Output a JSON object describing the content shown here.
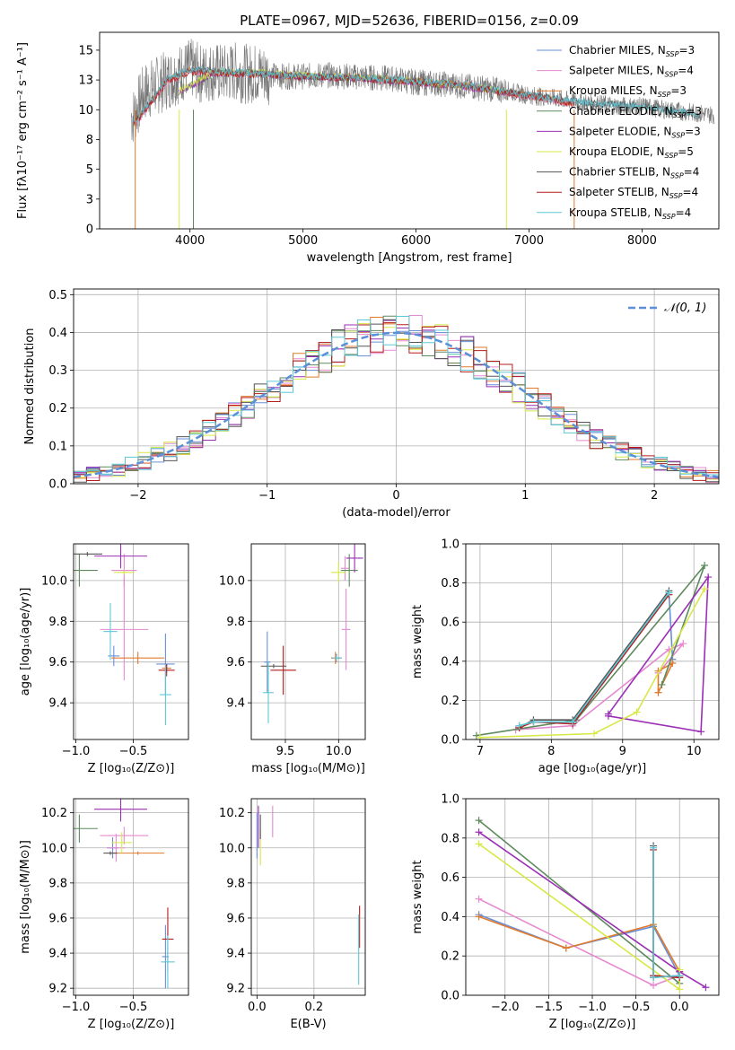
{
  "figure": {
    "title": "PLATE=0967, MJD=52636, FIBERID=0156, z=0.09"
  },
  "colors": [
    "#6a8fd8",
    "#e58ad0",
    "#e07b2e",
    "#5e8a5e",
    "#9b2fb5",
    "#d7e847",
    "#555555",
    "#b51c1c",
    "#5cc8d6"
  ],
  "chart_data": [
    {
      "id": "spectrum",
      "type": "line",
      "title": "PLATE=0967, MJD=52636, FIBERID=0156, z=0.09",
      "xlabel": "wavelength [Angstrom, rest frame]",
      "ylabel": "Flux [fλ10⁻¹⁷ erg cm⁻² s⁻¹ A⁻¹]",
      "xlim": [
        3200,
        8680
      ],
      "ylim": [
        0,
        16.5
      ],
      "xticks": [
        4000,
        5000,
        6000,
        7000,
        8000
      ],
      "yticks": [
        0.0,
        2.5,
        5.0,
        7.5,
        10.0,
        12.5,
        15.0
      ],
      "grid": false,
      "legend": "top-right",
      "series": [
        {
          "name": "Chabrier MILES, N_SSP=3",
          "x": [
            3500,
            3800,
            4000,
            4500,
            5000,
            5500,
            6000,
            6500,
            7000,
            7400
          ],
          "y": [
            8.8,
            12.5,
            13.3,
            13.0,
            12.8,
            12.7,
            12.4,
            12.0,
            11.2,
            10.6
          ]
        },
        {
          "name": "Salpeter MILES, N_SSP=4",
          "x": [
            3500,
            3800,
            4000,
            4500,
            5000,
            5500,
            6000,
            6500,
            7000,
            7400
          ],
          "y": [
            8.6,
            12.4,
            13.2,
            13.0,
            12.8,
            12.6,
            12.3,
            11.9,
            11.1,
            10.5
          ]
        },
        {
          "name": "Kroupa MILES, N_SSP=3",
          "x": [
            3500,
            3800,
            4000,
            4500,
            5000,
            5500,
            6000,
            6500,
            7000,
            7400
          ],
          "y": [
            8.8,
            12.5,
            13.3,
            13.0,
            12.8,
            12.7,
            12.4,
            12.0,
            11.2,
            10.6
          ]
        },
        {
          "name": "Chabrier ELODIE, N_SSP=3",
          "x": [
            3900,
            4200,
            4500,
            5000,
            5500,
            6000,
            6500,
            6800
          ],
          "y": [
            11.5,
            13.0,
            13.1,
            12.8,
            12.7,
            12.3,
            11.9,
            11.5
          ]
        },
        {
          "name": "Salpeter ELODIE, N_SSP=3",
          "x": [
            3900,
            4200,
            4500,
            5000,
            5500,
            6000,
            6500,
            6800
          ],
          "y": [
            11.4,
            13.0,
            13.1,
            12.8,
            12.6,
            12.3,
            11.8,
            11.5
          ]
        },
        {
          "name": "Kroupa ELODIE, N_SSP=5",
          "x": [
            3900,
            4200,
            4500,
            5000,
            5500,
            6000,
            6500,
            6800
          ],
          "y": [
            11.6,
            13.1,
            13.2,
            12.9,
            12.7,
            12.4,
            11.9,
            11.5
          ]
        },
        {
          "name": "Chabrier STELIB, N_SSP=4",
          "x": [
            3500,
            3800,
            4000,
            4500,
            5000,
            5500,
            6000,
            6500,
            7000,
            7500,
            8000,
            8500
          ],
          "y": [
            8.8,
            12.6,
            13.4,
            13.1,
            12.8,
            12.7,
            12.4,
            12.0,
            11.2,
            10.6,
            10.3,
            9.6
          ]
        },
        {
          "name": "Salpeter STELIB, N_SSP=4",
          "x": [
            3500,
            3800,
            4000,
            4500,
            5000,
            5500,
            6000,
            6500,
            7000,
            7400
          ],
          "y": [
            8.7,
            12.4,
            13.2,
            13.0,
            12.8,
            12.6,
            12.3,
            11.9,
            11.1,
            10.5
          ]
        },
        {
          "name": "Kroupa STELIB, N_SSP=4",
          "x": [
            3500,
            3800,
            4000,
            4500,
            5000,
            5500,
            6000,
            6500,
            7000,
            7500,
            8000,
            8500
          ],
          "y": [
            8.9,
            12.6,
            13.4,
            13.1,
            12.8,
            12.7,
            12.4,
            12.0,
            11.2,
            10.6,
            10.3,
            9.6
          ]
        }
      ],
      "observed": {
        "x": [
          3400,
          3500,
          3600,
          3700,
          3800,
          3900,
          4000,
          4100,
          4200,
          4300,
          4400,
          4500,
          4600,
          4800,
          5000,
          5200,
          5400,
          5600,
          5800,
          6000,
          6200,
          6400,
          6600,
          6800,
          7000,
          7200,
          7400,
          7600,
          7800,
          8000,
          8200,
          8400,
          8600
        ],
        "y": [
          9.0,
          9.5,
          11.5,
          12.0,
          12.5,
          13.0,
          13.5,
          13.0,
          13.2,
          13.0,
          13.2,
          13.0,
          13.1,
          12.8,
          12.8,
          12.9,
          12.8,
          12.7,
          12.6,
          12.3,
          12.2,
          12.0,
          11.8,
          11.6,
          11.2,
          11.0,
          10.7,
          10.5,
          10.3,
          10.3,
          10.0,
          9.8,
          9.6
        ],
        "noise": 1.6
      }
    },
    {
      "id": "residuals",
      "type": "histogram",
      "xlabel": "(data-model)/error",
      "ylabel": "Normed distribution",
      "xlim": [
        -2.5,
        2.5
      ],
      "ylim": [
        0,
        0.515
      ],
      "xticks": [
        -2,
        -1,
        0,
        1,
        2
      ],
      "yticks": [
        0.0,
        0.1,
        0.2,
        0.3,
        0.4,
        0.5
      ],
      "grid": true,
      "legend": "top-right",
      "legend_label": "𝒩(0, 1)",
      "bin_width": 0.1,
      "bin_start": -2.5,
      "reference": {
        "name": "N(0,1)",
        "mean": 0,
        "sigma": 1
      }
    },
    {
      "id": "age_Z",
      "type": "scatter",
      "xlabel": "Z [log₁₀(Z/Z⊙)]",
      "ylabel": "age  [log₁₀(age/yr)]",
      "xlim": [
        -1.02,
        -0.02
      ],
      "ylim": [
        9.22,
        10.18
      ],
      "xticks": [
        -1.0,
        -0.5
      ],
      "yticks": [
        9.4,
        9.6,
        9.8,
        10.0
      ],
      "grid": true,
      "errorbars": [
        {
          "s": 0,
          "x": -0.67,
          "xe": 0.05,
          "y": 9.63,
          "ye": 0.05
        },
        {
          "s": 0,
          "x": -0.22,
          "xe": 0.08,
          "y": 9.59,
          "ye": 0.15
        },
        {
          "s": 1,
          "x": -0.58,
          "xe": 0.21,
          "y": 9.76,
          "ye": 0.25
        },
        {
          "s": 1,
          "x": -0.58,
          "xe": 0.11,
          "y": 10.05,
          "ye": 0.08
        },
        {
          "s": 2,
          "x": -0.46,
          "xe": 0.23,
          "y": 9.62,
          "ye": 0.03
        },
        {
          "s": 2,
          "x": -0.21,
          "xe": 0.04,
          "y": 9.57,
          "ye": 0.02
        },
        {
          "s": 3,
          "x": -0.97,
          "xe": 0.16,
          "y": 10.05,
          "ye": 0.08
        },
        {
          "s": 4,
          "x": -0.61,
          "xe": 0.23,
          "y": 10.12,
          "ye": 0.06
        },
        {
          "s": 5,
          "x": -0.58,
          "xe": 0.09,
          "y": 10.04,
          "ye": 0.01
        },
        {
          "s": 6,
          "x": -0.9,
          "xe": 0.13,
          "y": 10.13,
          "ye": 0.01
        },
        {
          "s": 7,
          "x": -0.21,
          "xe": 0.07,
          "y": 9.56,
          "ye": 0.03
        },
        {
          "s": 8,
          "x": -0.7,
          "xe": 0.06,
          "y": 9.75,
          "ye": 0.14
        },
        {
          "s": 8,
          "x": -0.22,
          "xe": 0.05,
          "y": 9.44,
          "ye": 0.15
        }
      ]
    },
    {
      "id": "age_mass",
      "type": "scatter",
      "xlabel": "mass [log₁₀(M/M⊙)]",
      "ylabel": "",
      "xlim": [
        9.18,
        10.25
      ],
      "ylim": [
        9.22,
        10.18
      ],
      "xticks": [
        9.5,
        10.0
      ],
      "yticks": [
        9.4,
        9.6,
        9.8,
        10.0
      ],
      "grid": true,
      "errorbars": [
        {
          "s": 0,
          "x": 9.98,
          "xe": 0.05,
          "y": 9.62,
          "ye": 0.02
        },
        {
          "s": 0,
          "x": 9.33,
          "xe": 0.03,
          "y": 9.6,
          "ye": 0.15
        },
        {
          "s": 1,
          "x": 10.07,
          "xe": 0.04,
          "y": 9.76,
          "ye": 0.2
        },
        {
          "s": 1,
          "x": 10.06,
          "xe": 0.04,
          "y": 10.06,
          "ye": 0.06
        },
        {
          "s": 2,
          "x": 9.97,
          "xe": 0.04,
          "y": 9.62,
          "ye": 0.03
        },
        {
          "s": 3,
          "x": 10.1,
          "xe": 0.08,
          "y": 10.05,
          "ye": 0.08
        },
        {
          "s": 4,
          "x": 10.15,
          "xe": 0.08,
          "y": 10.11,
          "ye": 0.07
        },
        {
          "s": 5,
          "x": 10.0,
          "xe": 0.07,
          "y": 10.04,
          "ye": 0.05
        },
        {
          "s": 6,
          "x": 9.39,
          "xe": 0.12,
          "y": 9.58,
          "ye": 0.01
        },
        {
          "s": 7,
          "x": 9.48,
          "xe": 0.12,
          "y": 9.56,
          "ye": 0.12
        },
        {
          "s": 8,
          "x": 9.34,
          "xe": 0.05,
          "y": 9.45,
          "ye": 0.15
        },
        {
          "s": 8,
          "x": 9.98,
          "xe": 0.04,
          "y": 9.62,
          "ye": 0.01
        }
      ]
    },
    {
      "id": "weight_age",
      "type": "line",
      "xlabel": "age  [log₁₀(age/yr)]",
      "ylabel": "mass weight",
      "xlim": [
        6.8,
        10.35
      ],
      "ylim": [
        0,
        1.0
      ],
      "xticks": [
        7,
        8,
        9,
        10
      ],
      "yticks": [
        0.0,
        0.2,
        0.4,
        0.6,
        0.8,
        1.0
      ],
      "grid": true,
      "series": [
        {
          "x": [
            7.55,
            7.75,
            8.3,
            9.65,
            9.7
          ],
          "y": [
            0.07,
            0.09,
            0.09,
            0.75,
            0.41
          ]
        },
        {
          "x": [
            7.5,
            8.3,
            9.65,
            9.85,
            9.5
          ],
          "y": [
            0.05,
            0.07,
            0.46,
            0.49,
            0.34
          ]
        },
        {
          "x": [
            9.5,
            9.7,
            9.5,
            9.5
          ],
          "y": [
            0.24,
            0.39,
            0.35,
            0.24
          ]
        },
        {
          "x": [
            6.95,
            8.35,
            10.15,
            9.55
          ],
          "y": [
            0.02,
            0.1,
            0.89,
            0.28
          ]
        },
        {
          "x": [
            8.8,
            10.2,
            10.1,
            8.8
          ],
          "y": [
            0.13,
            0.83,
            0.04,
            0.12
          ]
        },
        {
          "x": [
            7.0,
            8.6,
            9.2,
            10.15
          ],
          "y": [
            0.01,
            0.03,
            0.14,
            0.77
          ]
        },
        {
          "x": [
            7.55,
            7.75,
            8.3,
            9.65
          ],
          "y": [
            0.06,
            0.1,
            0.1,
            0.76
          ]
        },
        {
          "x": [
            7.55,
            7.75,
            8.3,
            9.65
          ],
          "y": [
            0.06,
            0.09,
            0.08,
            0.74
          ]
        },
        {
          "x": [
            7.55,
            7.75,
            8.3,
            9.65
          ],
          "y": [
            0.07,
            0.09,
            0.09,
            0.75
          ]
        }
      ]
    },
    {
      "id": "mass_Z",
      "type": "scatter",
      "xlabel": "Z [log₁₀(Z/Z⊙)]",
      "ylabel": "mass [log₁₀(M/M⊙)]",
      "xlim": [
        -1.02,
        -0.02
      ],
      "ylim": [
        9.16,
        10.28
      ],
      "xticks": [
        -1.0,
        -0.5
      ],
      "yticks": [
        9.2,
        9.4,
        9.6,
        9.8,
        10.0,
        10.2
      ],
      "grid": true,
      "errorbars": [
        {
          "s": 0,
          "x": -0.68,
          "xe": 0.05,
          "y": 10.0,
          "ye": 0.06
        },
        {
          "s": 0,
          "x": -0.22,
          "xe": 0.03,
          "y": 9.38,
          "ye": 0.18
        },
        {
          "s": 1,
          "x": -0.58,
          "xe": 0.21,
          "y": 10.07,
          "ye": 0.05
        },
        {
          "s": 1,
          "x": -0.65,
          "xe": 0.08,
          "y": 10.0,
          "ye": 0.08
        },
        {
          "s": 2,
          "x": -0.46,
          "xe": 0.23,
          "y": 9.97,
          "ye": 0.01
        },
        {
          "s": 3,
          "x": -0.97,
          "xe": 0.16,
          "y": 10.11,
          "ye": 0.08
        },
        {
          "s": 4,
          "x": -0.61,
          "xe": 0.23,
          "y": 10.22,
          "ye": 0.07
        },
        {
          "s": 5,
          "x": -0.6,
          "xe": 0.09,
          "y": 10.03,
          "ye": 0.06
        },
        {
          "s": 6,
          "x": -0.7,
          "xe": 0.06,
          "y": 9.97,
          "ye": 0.01
        },
        {
          "s": 7,
          "x": -0.2,
          "xe": 0.05,
          "y": 9.48,
          "ye": 0.18
        },
        {
          "s": 8,
          "x": -0.2,
          "xe": 0.06,
          "y": 9.35,
          "ye": 0.15
        }
      ]
    },
    {
      "id": "mass_ebv",
      "type": "scatter",
      "xlabel": "E(B-V)",
      "ylabel": "",
      "xlim": [
        -0.02,
        0.38
      ],
      "ylim": [
        9.16,
        10.28
      ],
      "xticks": [
        0.0,
        0.2
      ],
      "yticks": [
        9.2,
        9.4,
        9.6,
        9.8,
        10.0,
        10.2
      ],
      "grid": true,
      "errorbars": [
        {
          "s": 0,
          "x": 0.0,
          "xe": 0,
          "y": 10.07,
          "ye": 0.13
        },
        {
          "s": 1,
          "x": 0.055,
          "xe": 0,
          "y": 10.15,
          "ye": 0.09
        },
        {
          "s": 4,
          "x": 0.005,
          "xe": 0,
          "y": 10.12,
          "ye": 0.12
        },
        {
          "s": 5,
          "x": 0.012,
          "xe": 0,
          "y": 10.0,
          "ye": 0.1
        },
        {
          "s": 6,
          "x": 0.012,
          "xe": 0,
          "y": 10.12,
          "ye": 0.07
        },
        {
          "s": 7,
          "x": 0.36,
          "xe": 0,
          "y": 9.55,
          "ye": 0.12
        },
        {
          "s": 8,
          "x": 0.357,
          "xe": 0,
          "y": 9.42,
          "ye": 0.2
        }
      ]
    },
    {
      "id": "weight_Z",
      "type": "line",
      "xlabel": "Z [log₁₀(Z/Z⊙)]",
      "ylabel": "mass weight",
      "xlim": [
        -2.45,
        0.45
      ],
      "ylim": [
        0,
        1.0
      ],
      "xticks": [
        -2.0,
        -1.5,
        -1.0,
        -0.5,
        0.0
      ],
      "yticks": [
        0.0,
        0.2,
        0.4,
        0.6,
        0.8,
        1.0
      ],
      "grid": true,
      "series": [
        {
          "x": [
            -2.3,
            -1.3,
            -0.3,
            0.0
          ],
          "y": [
            0.41,
            0.24,
            0.35,
            0.1
          ]
        },
        {
          "x": [
            -2.3,
            -0.3,
            0.0
          ],
          "y": [
            0.49,
            0.05,
            0.1
          ]
        },
        {
          "x": [
            -2.3,
            -1.3,
            -0.3,
            0.0
          ],
          "y": [
            0.4,
            0.24,
            0.36,
            0.12
          ]
        },
        {
          "x": [
            -2.3,
            0.0,
            0.0
          ],
          "y": [
            0.89,
            0.06,
            0.09
          ]
        },
        {
          "x": [
            -2.3,
            0.0,
            0.3
          ],
          "y": [
            0.83,
            0.12,
            0.04
          ]
        },
        {
          "x": [
            -2.3,
            0.0,
            0.0
          ],
          "y": [
            0.77,
            0.03,
            0.13
          ]
        },
        {
          "x": [
            -0.3,
            -0.3,
            0.0
          ],
          "y": [
            0.76,
            0.09,
            0.1
          ]
        },
        {
          "x": [
            -0.3,
            -0.3,
            0.0
          ],
          "y": [
            0.74,
            0.1,
            0.09
          ]
        },
        {
          "x": [
            -0.3,
            -0.3,
            0.0
          ],
          "y": [
            0.75,
            0.09,
            0.1
          ]
        }
      ]
    }
  ]
}
